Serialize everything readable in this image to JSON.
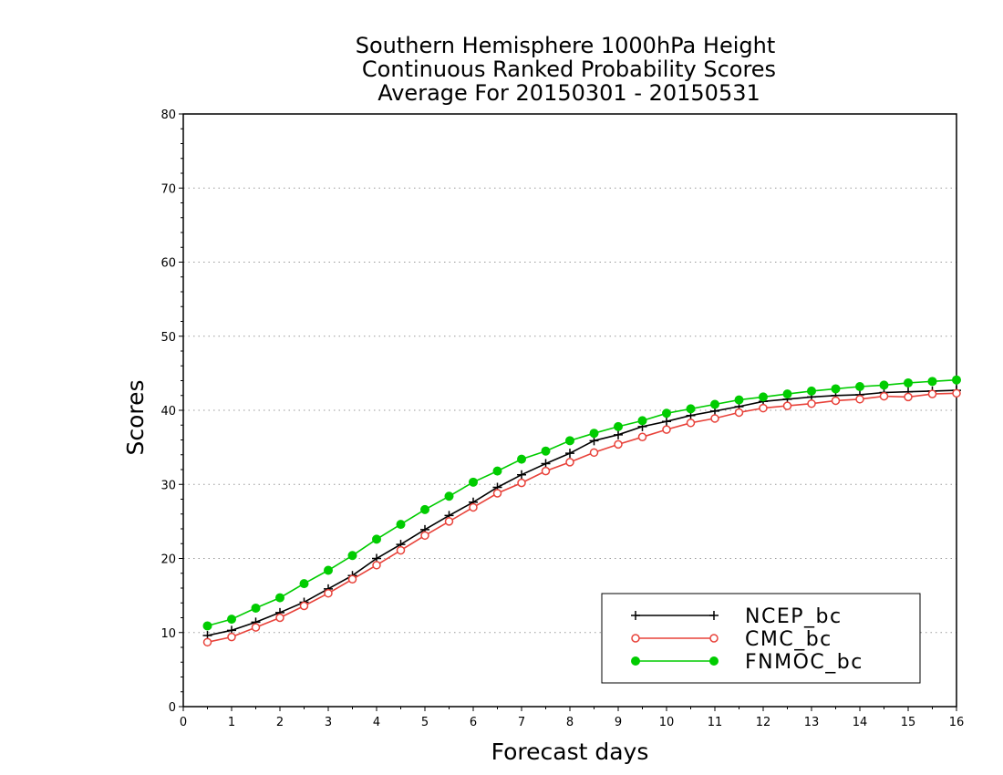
{
  "chart_data": {
    "type": "line",
    "title_lines": [
      "Southern Hemisphere 1000hPa Height",
      "Continuous Ranked Probability Scores",
      "Average For 20150301 - 20150531"
    ],
    "xlabel": "Forecast days",
    "ylabel": "Scores",
    "xlim": [
      0,
      16
    ],
    "ylim": [
      0,
      80
    ],
    "x_ticks": [
      0,
      1,
      2,
      3,
      4,
      5,
      6,
      7,
      8,
      9,
      10,
      11,
      12,
      13,
      14,
      15,
      16
    ],
    "y_ticks": [
      0,
      10,
      20,
      30,
      40,
      50,
      60,
      70,
      80
    ],
    "grid": "horizontal dotted",
    "legend_position": "bottom-right",
    "x": [
      0.5,
      1,
      1.5,
      2,
      2.5,
      3,
      3.5,
      4,
      4.5,
      5,
      5.5,
      6,
      6.5,
      7,
      7.5,
      8,
      8.5,
      9,
      9.5,
      10,
      10.5,
      11,
      11.5,
      12,
      12.5,
      13,
      13.5,
      14,
      14.5,
      15,
      15.5,
      16
    ],
    "series": [
      {
        "name": "NCEP_bc",
        "color": "#000000",
        "marker": "plus",
        "values": [
          9.6,
          10.3,
          11.4,
          12.7,
          14.1,
          15.9,
          17.7,
          20.0,
          21.9,
          23.9,
          25.8,
          27.6,
          29.6,
          31.3,
          32.8,
          34.2,
          35.9,
          36.7,
          37.8,
          38.5,
          39.3,
          39.9,
          40.5,
          41.2,
          41.5,
          41.8,
          42.0,
          42.1,
          42.4,
          42.5,
          42.6,
          42.7
        ]
      },
      {
        "name": "CMC_bc",
        "color": "#e8423a",
        "marker": "open-circle",
        "values": [
          8.7,
          9.4,
          10.7,
          12.0,
          13.6,
          15.3,
          17.2,
          19.1,
          21.1,
          23.1,
          25.0,
          26.9,
          28.8,
          30.2,
          31.8,
          33.0,
          34.3,
          35.4,
          36.4,
          37.4,
          38.3,
          38.9,
          39.7,
          40.3,
          40.6,
          40.9,
          41.3,
          41.5,
          41.9,
          41.8,
          42.2,
          42.3
        ]
      },
      {
        "name": "FNMOC_bc",
        "color": "#00cc00",
        "marker": "filled-circle",
        "values": [
          10.9,
          11.8,
          13.3,
          14.7,
          16.6,
          18.4,
          20.4,
          22.6,
          24.6,
          26.6,
          28.4,
          30.3,
          31.8,
          33.4,
          34.5,
          35.9,
          36.9,
          37.8,
          38.6,
          39.6,
          40.2,
          40.8,
          41.4,
          41.8,
          42.2,
          42.6,
          42.9,
          43.2,
          43.4,
          43.7,
          43.9,
          44.1
        ]
      }
    ]
  }
}
